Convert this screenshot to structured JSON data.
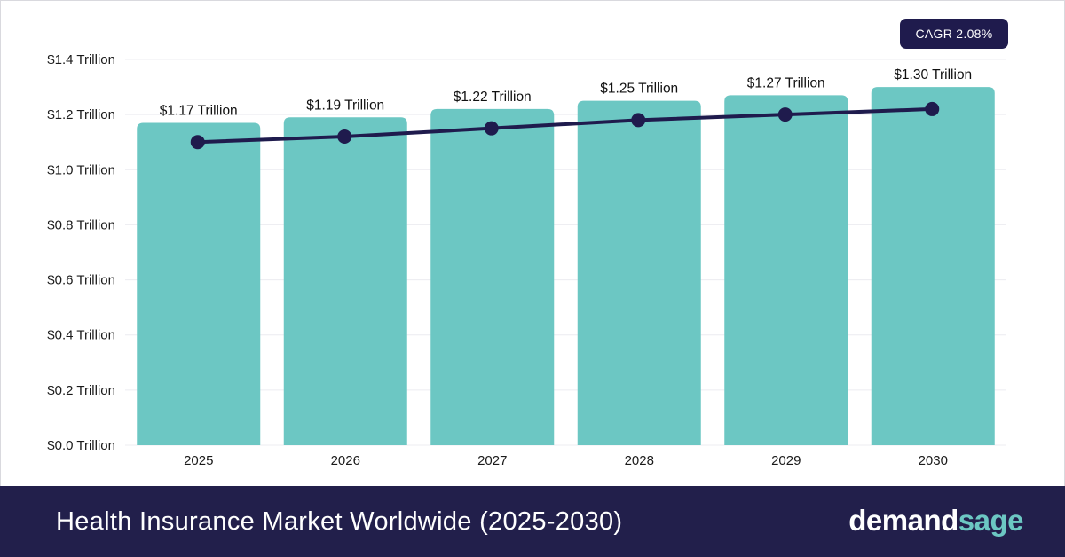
{
  "footer": {
    "title": "Health Insurance Market Worldwide (2025-2030)",
    "brand_part1": "demand",
    "brand_part2": "sage"
  },
  "badge": {
    "label": "CAGR 2.08%"
  },
  "colors": {
    "bar": "#6cc7c3",
    "line": "#1f1b4d",
    "footer_bg": "#221f4b",
    "brand_accent": "#6cc7c3"
  },
  "chart_data": {
    "type": "bar",
    "categories": [
      "2025",
      "2026",
      "2027",
      "2028",
      "2029",
      "2030"
    ],
    "values": [
      1.17,
      1.19,
      1.22,
      1.25,
      1.27,
      1.3
    ],
    "data_labels": [
      "$1.17 Trillion",
      "$1.19 Trillion",
      "$1.22 Trillion",
      "$1.25 Trillion",
      "$1.27 Trillion",
      "$1.30 Trillion"
    ],
    "trend_line": [
      1.1,
      1.12,
      1.15,
      1.18,
      1.2,
      1.22
    ],
    "ylim": [
      0,
      1.4
    ],
    "yticks": [
      0.0,
      0.2,
      0.4,
      0.6,
      0.8,
      1.0,
      1.2,
      1.4
    ],
    "ytick_labels": [
      "$0.0 Trillion",
      "$0.2 Trillion",
      "$0.4 Trillion",
      "$0.6 Trillion",
      "$0.8 Trillion",
      "$1.0 Trillion",
      "$1.2 Trillion",
      "$1.4 Trillion"
    ],
    "grid": true,
    "title": "",
    "xlabel": "",
    "ylabel": ""
  }
}
